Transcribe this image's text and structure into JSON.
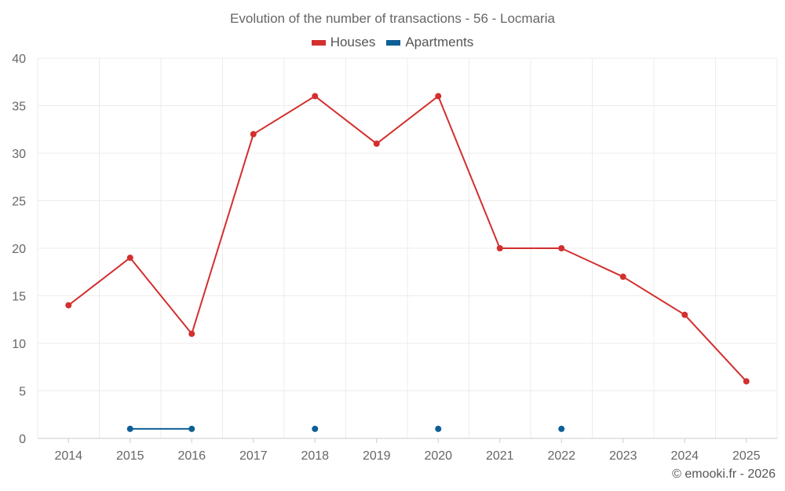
{
  "chart_data": {
    "type": "line",
    "title": "Evolution of the number of transactions - 56 - Locmaria",
    "xlabel": "",
    "ylabel": "",
    "ylim": [
      0,
      40
    ],
    "y_ticks": [
      0,
      5,
      10,
      15,
      20,
      25,
      30,
      35,
      40
    ],
    "categories": [
      "2014",
      "2015",
      "2016",
      "2017",
      "2018",
      "2019",
      "2020",
      "2021",
      "2022",
      "2023",
      "2024",
      "2025"
    ],
    "grid": true,
    "legend_position": "top-center",
    "series": [
      {
        "name": "Houses",
        "color": "#d32f2f",
        "values": [
          14,
          19,
          11,
          32,
          36,
          31,
          36,
          20,
          20,
          17,
          13,
          6
        ]
      },
      {
        "name": "Apartments",
        "color": "#0e5f96",
        "values": [
          null,
          1,
          1,
          null,
          1,
          null,
          1,
          null,
          1,
          null,
          null,
          null
        ]
      }
    ]
  },
  "watermark": "© emooki.fr - 2026"
}
